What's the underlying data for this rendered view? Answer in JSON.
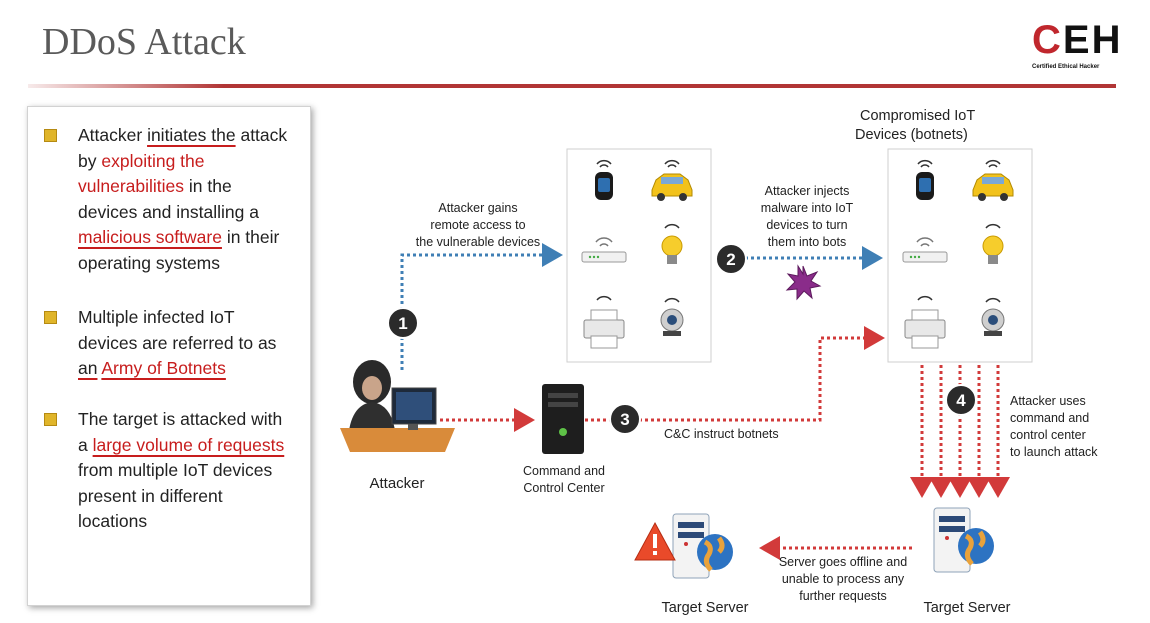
{
  "slide": {
    "title": "DDoS Attack"
  },
  "logo": {
    "mark_c": "C",
    "mark_eh": "EH",
    "sub": "Certified  Ethical  Hacker"
  },
  "bullets": [
    {
      "segments": [
        {
          "t": "Attacker ",
          "s": "n"
        },
        {
          "t": "initiates the",
          "s": "u"
        },
        {
          "t": " attack by ",
          "s": "n"
        },
        {
          "t": "exploiting the vulnerabilities",
          "s": "r"
        },
        {
          "t": " in the devices and installing a ",
          "s": "n"
        },
        {
          "t": "malicious software",
          "s": "ru"
        },
        {
          "t": " in their operating systems",
          "s": "n"
        }
      ]
    },
    {
      "segments": [
        {
          "t": "Multiple infected IoT devices are referred to as ",
          "s": "n"
        },
        {
          "t": "an",
          "s": "u"
        },
        {
          "t": " ",
          "s": "n"
        },
        {
          "t": "Army of Botnets",
          "s": "ru"
        }
      ]
    },
    {
      "segments": [
        {
          "t": "The target is attacked with a ",
          "s": "n"
        },
        {
          "t": "large volume of requests",
          "s": "ru"
        },
        {
          "t": " from multiple IoT devices present in different locations",
          "s": "n"
        }
      ]
    }
  ],
  "diagram": {
    "attacker_label": "Attacker",
    "cnc_label": [
      "Command and",
      "Control Center"
    ],
    "compromised_label": [
      "Compromised IoT",
      "Devices (botnets)"
    ],
    "step1": {
      "num": "1",
      "text": [
        "Attacker gains",
        "remote access to",
        "the vulnerable devices"
      ]
    },
    "step2": {
      "num": "2",
      "text": [
        "Attacker injects",
        "malware into IoT",
        "devices to turn",
        "them into bots"
      ]
    },
    "step3": {
      "num": "3",
      "text": [
        "C&C instruct botnets"
      ]
    },
    "step4": {
      "num": "4",
      "text": [
        "Attacker uses",
        "command and",
        "control center",
        "to launch attack"
      ]
    },
    "offline_text": [
      "Server goes offline and",
      "unable to process any",
      "further requests"
    ],
    "target_server_left": "Target Server",
    "target_server_right": "Target Server",
    "colors": {
      "dotted_blue": "#3f7fb5",
      "dotted_red": "#d23a3a",
      "badge": "#2b2b2b",
      "accent_red": "#c71d1d"
    }
  }
}
